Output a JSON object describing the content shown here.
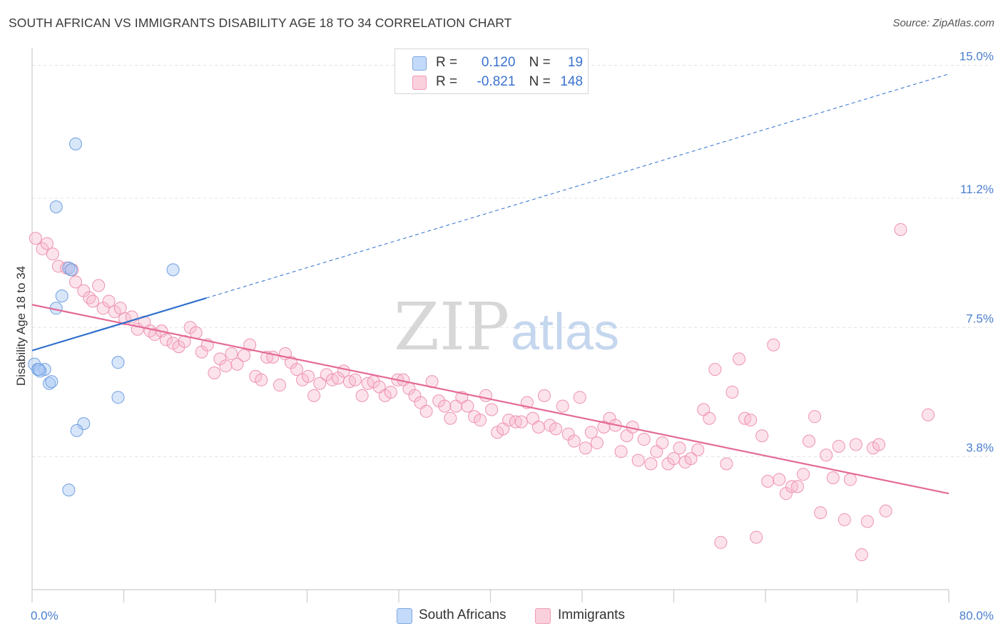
{
  "title": "SOUTH AFRICAN VS IMMIGRANTS DISABILITY AGE 18 TO 34 CORRELATION CHART",
  "source": "Source: ZipAtlas.com",
  "watermark": {
    "zip": "ZIP",
    "atlas": "atlas"
  },
  "legend_top": [
    {
      "r_label": "R =",
      "r_value": "0.120",
      "n_label": "N =",
      "n_value": "19",
      "color": "#a8c8f4"
    },
    {
      "r_label": "R =",
      "r_value": "-0.821",
      "n_label": "N =",
      "n_value": "148",
      "color": "#f8b8cc"
    }
  ],
  "legend_bottom": [
    {
      "label": "South Africans",
      "color": "#a8c8f4"
    },
    {
      "label": "Immigrants",
      "color": "#f8b8cc"
    }
  ],
  "colors": {
    "sa_fill": "rgba(168,200,244,0.45)",
    "sa_stroke": "#6f9fe0",
    "sa_line": "#2f6fcc",
    "im_fill": "rgba(248,184,204,0.40)",
    "im_stroke": "#ee92b0",
    "im_line": "#e46a98",
    "grid": "#e2e2e2",
    "axis": "#cccccc",
    "tick_label": "#4a7fd0"
  },
  "chart_data": {
    "type": "scatter",
    "title": "SOUTH AFRICAN VS IMMIGRANTS DISABILITY AGE 18 TO 34 CORRELATION CHART",
    "xlabel": "",
    "ylabel": "Disability Age 18 to 34",
    "xlim": [
      0,
      80
    ],
    "ylim": [
      0,
      15.5
    ],
    "x_tick_labels": [
      {
        "value": 0,
        "label": "0.0%"
      },
      {
        "value": 80,
        "label": "80.0%"
      }
    ],
    "y_tick_labels": [
      {
        "value": 3.8,
        "label": "3.8%"
      },
      {
        "value": 7.5,
        "label": "7.5%"
      },
      {
        "value": 11.2,
        "label": "11.2%"
      },
      {
        "value": 15.0,
        "label": "15.0%"
      }
    ],
    "grid": true,
    "series": [
      {
        "name": "South Africans",
        "R": 0.12,
        "N": 19,
        "trend": {
          "x": [
            0,
            15.2
          ],
          "y": [
            6.84,
            8.34
          ],
          "extended_to": [
            80,
            14.75
          ]
        },
        "points": [
          [
            0.2,
            6.45
          ],
          [
            0.5,
            6.3
          ],
          [
            1.1,
            6.3
          ],
          [
            0.7,
            6.25
          ],
          [
            1.5,
            5.9
          ],
          [
            1.7,
            5.95
          ],
          [
            2.1,
            8.05
          ],
          [
            2.6,
            8.4
          ],
          [
            3.2,
            9.2
          ],
          [
            3.4,
            9.15
          ],
          [
            2.1,
            10.95
          ],
          [
            3.8,
            12.75
          ],
          [
            7.5,
            6.5
          ],
          [
            7.5,
            5.5
          ],
          [
            4.5,
            4.75
          ],
          [
            3.9,
            4.55
          ],
          [
            3.2,
            2.85
          ],
          [
            12.3,
            9.15
          ],
          [
            0.6,
            6.3
          ]
        ]
      },
      {
        "name": "Immigrants",
        "R": -0.821,
        "N": 148,
        "trend": {
          "x": [
            0,
            80
          ],
          "y": [
            8.15,
            2.75
          ]
        },
        "points": [
          [
            0.3,
            10.05
          ],
          [
            0.9,
            9.75
          ],
          [
            1.3,
            9.9
          ],
          [
            1.8,
            9.6
          ],
          [
            2.3,
            9.25
          ],
          [
            3.0,
            9.2
          ],
          [
            3.5,
            9.15
          ],
          [
            3.8,
            8.8
          ],
          [
            4.5,
            8.55
          ],
          [
            5.0,
            8.35
          ],
          [
            5.3,
            8.25
          ],
          [
            5.8,
            8.7
          ],
          [
            6.2,
            8.05
          ],
          [
            6.7,
            8.25
          ],
          [
            7.2,
            7.95
          ],
          [
            7.7,
            8.05
          ],
          [
            8.1,
            7.75
          ],
          [
            8.7,
            7.8
          ],
          [
            9.2,
            7.45
          ],
          [
            9.8,
            7.65
          ],
          [
            10.3,
            7.4
          ],
          [
            10.7,
            7.3
          ],
          [
            11.3,
            7.4
          ],
          [
            11.7,
            7.15
          ],
          [
            12.3,
            7.05
          ],
          [
            12.8,
            6.95
          ],
          [
            13.3,
            7.1
          ],
          [
            13.8,
            7.5
          ],
          [
            14.3,
            7.35
          ],
          [
            14.8,
            6.8
          ],
          [
            15.3,
            7.0
          ],
          [
            15.9,
            6.2
          ],
          [
            16.4,
            6.6
          ],
          [
            16.9,
            6.4
          ],
          [
            17.4,
            6.75
          ],
          [
            17.9,
            6.45
          ],
          [
            18.5,
            6.7
          ],
          [
            19.0,
            7.0
          ],
          [
            19.5,
            6.1
          ],
          [
            20.0,
            6.0
          ],
          [
            20.5,
            6.65
          ],
          [
            21.0,
            6.65
          ],
          [
            21.6,
            5.85
          ],
          [
            22.1,
            6.75
          ],
          [
            22.6,
            6.5
          ],
          [
            23.1,
            6.3
          ],
          [
            23.6,
            6.0
          ],
          [
            24.1,
            6.1
          ],
          [
            24.6,
            5.55
          ],
          [
            25.1,
            5.9
          ],
          [
            25.7,
            6.15
          ],
          [
            26.2,
            6.0
          ],
          [
            26.7,
            6.05
          ],
          [
            27.2,
            6.25
          ],
          [
            27.7,
            5.95
          ],
          [
            28.2,
            6.0
          ],
          [
            28.8,
            5.55
          ],
          [
            29.3,
            5.9
          ],
          [
            29.8,
            5.95
          ],
          [
            30.3,
            5.8
          ],
          [
            30.8,
            5.55
          ],
          [
            31.3,
            5.65
          ],
          [
            31.9,
            6.0
          ],
          [
            32.4,
            6.0
          ],
          [
            32.9,
            5.75
          ],
          [
            33.4,
            5.55
          ],
          [
            33.9,
            5.35
          ],
          [
            34.4,
            5.1
          ],
          [
            34.9,
            5.95
          ],
          [
            35.5,
            5.4
          ],
          [
            36.0,
            5.25
          ],
          [
            36.5,
            4.9
          ],
          [
            37.0,
            5.25
          ],
          [
            37.5,
            5.5
          ],
          [
            38.0,
            5.25
          ],
          [
            38.6,
            4.95
          ],
          [
            39.1,
            4.85
          ],
          [
            39.6,
            5.55
          ],
          [
            40.1,
            5.15
          ],
          [
            40.6,
            4.5
          ],
          [
            41.1,
            4.6
          ],
          [
            41.6,
            4.85
          ],
          [
            42.2,
            4.8
          ],
          [
            42.7,
            4.8
          ],
          [
            43.2,
            5.35
          ],
          [
            43.7,
            4.9
          ],
          [
            44.2,
            4.65
          ],
          [
            44.7,
            5.55
          ],
          [
            45.2,
            4.7
          ],
          [
            45.7,
            4.6
          ],
          [
            46.3,
            5.25
          ],
          [
            46.8,
            4.45
          ],
          [
            47.3,
            4.25
          ],
          [
            47.8,
            5.5
          ],
          [
            48.3,
            4.05
          ],
          [
            48.8,
            4.5
          ],
          [
            49.3,
            4.2
          ],
          [
            49.9,
            4.65
          ],
          [
            50.4,
            4.9
          ],
          [
            50.9,
            4.7
          ],
          [
            51.4,
            3.95
          ],
          [
            51.9,
            4.4
          ],
          [
            52.4,
            4.65
          ],
          [
            52.9,
            3.7
          ],
          [
            53.4,
            4.3
          ],
          [
            54.0,
            3.6
          ],
          [
            54.5,
            3.95
          ],
          [
            55.0,
            4.2
          ],
          [
            55.5,
            3.6
          ],
          [
            56.0,
            3.75
          ],
          [
            56.5,
            4.05
          ],
          [
            57.0,
            3.65
          ],
          [
            57.5,
            3.75
          ],
          [
            58.1,
            4.0
          ],
          [
            58.6,
            5.15
          ],
          [
            59.1,
            4.9
          ],
          [
            59.6,
            6.3
          ],
          [
            60.1,
            1.35
          ],
          [
            60.6,
            3.6
          ],
          [
            61.1,
            5.65
          ],
          [
            61.7,
            6.6
          ],
          [
            62.2,
            4.9
          ],
          [
            62.7,
            4.85
          ],
          [
            63.2,
            1.5
          ],
          [
            63.7,
            4.4
          ],
          [
            64.2,
            3.1
          ],
          [
            64.7,
            7.0
          ],
          [
            65.2,
            3.15
          ],
          [
            65.8,
            2.75
          ],
          [
            66.3,
            2.95
          ],
          [
            66.8,
            2.95
          ],
          [
            67.3,
            3.3
          ],
          [
            67.8,
            4.25
          ],
          [
            68.3,
            4.95
          ],
          [
            68.8,
            2.2
          ],
          [
            69.3,
            3.85
          ],
          [
            69.9,
            3.2
          ],
          [
            70.4,
            4.1
          ],
          [
            70.9,
            2.0
          ],
          [
            71.4,
            3.15
          ],
          [
            71.9,
            4.15
          ],
          [
            72.4,
            1.0
          ],
          [
            72.9,
            1.95
          ],
          [
            73.4,
            4.05
          ],
          [
            73.9,
            4.15
          ],
          [
            74.5,
            2.25
          ],
          [
            75.8,
            10.3
          ],
          [
            78.2,
            5.0
          ]
        ]
      }
    ]
  }
}
